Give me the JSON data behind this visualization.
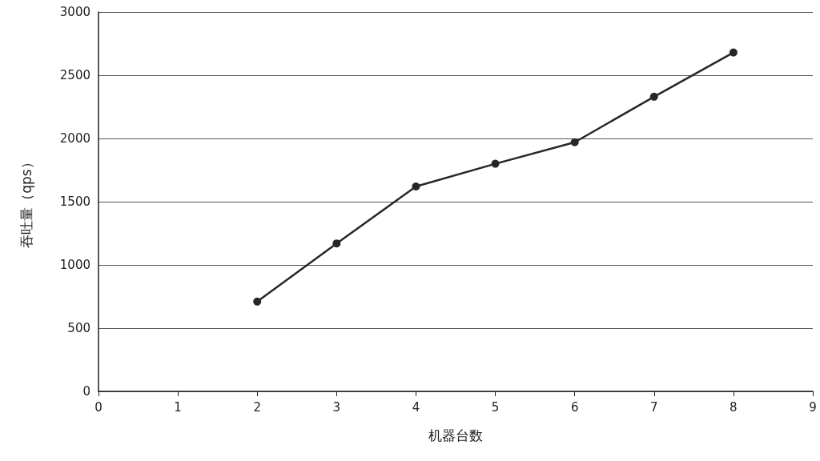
{
  "chart_data": {
    "type": "line",
    "xlabel": "机器台数",
    "ylabel": "吞吐量（qps）",
    "x": [
      2,
      3,
      4,
      5,
      6,
      7,
      8
    ],
    "series": [
      {
        "color": "#2b2626",
        "values": [
          710,
          1170,
          1620,
          1800,
          1970,
          2330,
          2680
        ]
      }
    ],
    "xlim": [
      0,
      9
    ],
    "xticks": [
      0,
      1,
      2,
      3,
      4,
      5,
      6,
      7,
      8,
      9
    ],
    "ylim": [
      0,
      3000
    ],
    "yticks": [
      0,
      500,
      1000,
      1500,
      2000,
      2500,
      3000
    ],
    "grid": "y",
    "marker": "circle",
    "line_style": "solid"
  }
}
